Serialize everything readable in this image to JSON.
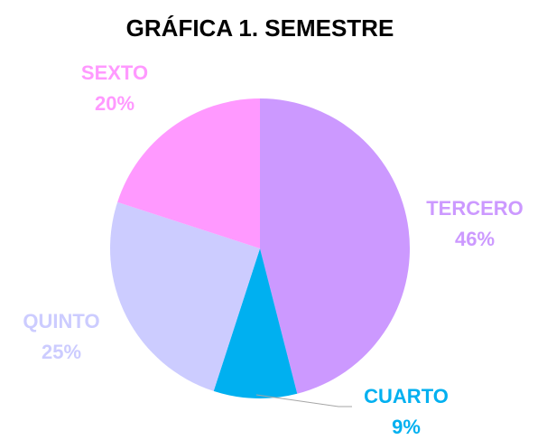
{
  "chart_data": {
    "type": "pie",
    "title": "GRÁFICA 1. SEMESTRE",
    "categories": [
      "TERCERO",
      "CUARTO",
      "QUINTO",
      "SEXTO"
    ],
    "values": [
      46,
      9,
      25,
      20
    ],
    "value_labels": [
      "46%",
      "9%",
      "25%",
      "20%"
    ],
    "colors": [
      "#cc99ff",
      "#00b0f0",
      "#ccccff",
      "#ff99ff"
    ]
  }
}
